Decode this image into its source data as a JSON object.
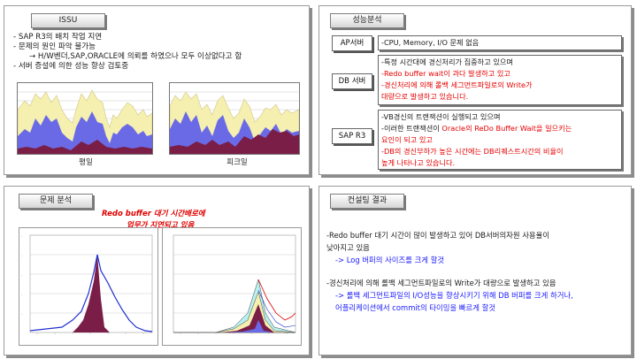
{
  "issu": {
    "title": "ISSU",
    "lines": [
      "- SAP R3의 배치 작업 지연",
      "- 문제의 원인 파악 불가능",
      "→ H/W벤더,SAP,ORACLE에 의뢰를 하였으나 모두 이상없다고 함",
      "- 서버 증설에 의한 성능 향상 검토중"
    ],
    "chart_left_label": "평일",
    "chart_right_label": "피크일"
  },
  "performance": {
    "title": "성능분석",
    "rows": [
      {
        "label": "AP서버",
        "lines": [
          "-CPU, Memory, I/O 문제 없음"
        ]
      },
      {
        "label": "DB 서버",
        "lines": [
          "-특정 시간대에 경신처리가 집중하고 있으며",
          "-Redo buffer wait이 과다 발생하고 있고",
          "-경신처리에 의해 롤백 세그먼트파일로의 Write가",
          "  대량으로 발생하고 있습니다."
        ]
      },
      {
        "label": "SAP R3",
        "lines": [
          "-VB경신의 트랜잭션이 실행되고 있으며",
          "-이러한 트랜잭션이 Oracle의 ReDo Buffer Wait을 일으키는",
          "  요인이 되고  있고",
          "-DB의 경신부하가 높은 시간에는 DB리퀘스트시간의 비율이",
          "  높게 나타나고 있습니다."
        ]
      }
    ]
  },
  "problem": {
    "title": "문제 분석",
    "annotation_line1": "Redo buffer 대기 시간배로에",
    "annotation_line2": "업무가 지연되고 있음"
  },
  "consulting": {
    "title": "컨설팅 결과",
    "line1": "-Redo buffer 대기 시간이 많이 발생하고 있어 DB서버의자원 사용율이",
    "line2": "  낮아지고 있음",
    "line3": "-> Log 버퍼의 사이즈를 크게 할것",
    "line4": "-경신처리에 의해 롤백 세그먼트파일로의 Write가 대량으로 발생하고 있음",
    "line5": "-> 롤백 세그먼트파일의 I/O성능을 향상시키기 위해 DB 버퍼를 크게 하거나,",
    "line6": "  어플리케이션에서 commit의 타이밍을 빠르게 할것"
  },
  "colors": {
    "purple": "#6a6ae6",
    "maroon": "#7a1d47",
    "yellow": "#f5efb0",
    "red_text": "#e60000",
    "blue_text": "#1a1aff"
  }
}
